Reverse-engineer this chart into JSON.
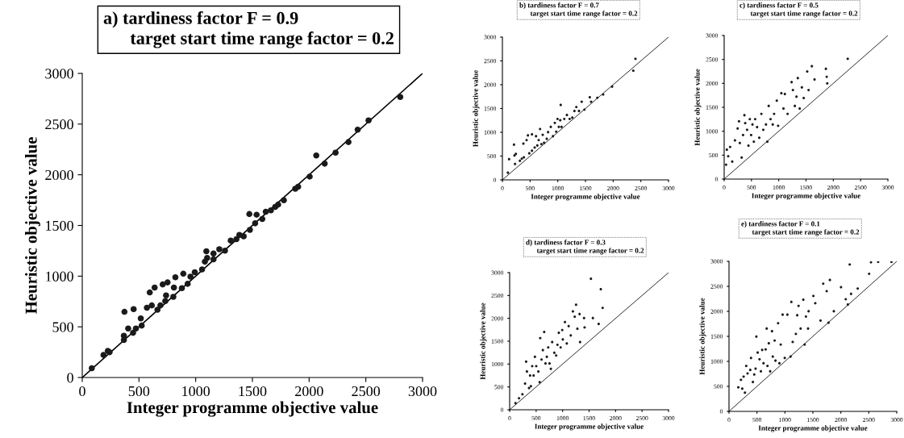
{
  "chart_data": [
    {
      "type": "scatter",
      "title": "a) tardiness factor F = 0.9",
      "subtitle": "target start time range factor = 0.2",
      "xlabel": "Integer programme objective value",
      "ylabel": "Heuristic objective value",
      "xlim": [
        0,
        3000
      ],
      "ylim": [
        0,
        3000
      ],
      "xticks": [
        0,
        500,
        1000,
        1500,
        2000,
        2500,
        3000
      ],
      "yticks": [
        0,
        500,
        1000,
        1500,
        2000,
        2500,
        3000
      ],
      "grid": false,
      "legend": false,
      "series": [
        {
          "marker": "circle",
          "color": "#1a1a1a",
          "x": [
            84,
            187,
            225,
            241,
            367,
            367,
            372,
            405,
            453,
            448,
            473,
            516,
            524,
            570,
            595,
            638,
            613,
            663,
            689,
            709,
            752,
            732,
            739,
            803,
            808,
            821,
            878,
            891,
            929,
            954,
            992,
            1056,
            1081,
            1094,
            1101,
            1157,
            1208,
            1157,
            1258,
            1309,
            1359,
            1385,
            1423,
            1478,
            1473,
            1537,
            1524,
            1587,
            1618,
            1663,
            1701,
            1727,
            1777,
            1878,
            1903,
            2005,
            2063,
            2137,
            2233,
            2347,
            2428,
            2524,
            2803
          ],
          "values": [
            91,
            222,
            262,
            250,
            370,
            412,
            648,
            483,
            674,
            441,
            483,
            583,
            512,
            688,
            839,
            887,
            711,
            668,
            711,
            918,
            938,
            754,
            810,
            796,
            887,
            989,
            881,
            1024,
            924,
            995,
            1038,
            1066,
            1143,
            1245,
            1180,
            1223,
            1265,
            1166,
            1251,
            1351,
            1365,
            1407,
            1393,
            1456,
            1612,
            1606,
            1521,
            1564,
            1635,
            1649,
            1683,
            1706,
            1749,
            1862,
            1882,
            1982,
            2190,
            2110,
            2218,
            2323,
            2445,
            2536,
            2767
          ]
        },
        {
          "type": "line",
          "marker": "none",
          "color": "#000000",
          "x": [
            0,
            3000
          ],
          "values": [
            0,
            3000
          ]
        }
      ]
    },
    {
      "type": "scatter",
      "title": "b) tardiness factor F = 0.7",
      "subtitle": "target start time range factor = 0.2",
      "xlabel": "Integer programme objective value",
      "ylabel": "Heuristic objective value",
      "xlim": [
        0,
        3000
      ],
      "ylim": [
        0,
        3000
      ],
      "xticks": [
        0,
        500,
        1000,
        1500,
        2000,
        2500,
        3000
      ],
      "yticks": [
        0,
        500,
        1000,
        1500,
        2000,
        2500,
        3000
      ],
      "grid": false,
      "legend": false,
      "series": [
        {
          "marker": "circle",
          "color": "#1a1a1a",
          "x": [
            100,
            121,
            209,
            218,
            243,
            228,
            316,
            350,
            388,
            379,
            437,
            461,
            485,
            534,
            534,
            583,
            607,
            631,
            655,
            680,
            704,
            728,
            752,
            801,
            825,
            874,
            913,
            947,
            971,
            995,
            1019,
            1044,
            1053,
            1068,
            1117,
            1165,
            1214,
            1262,
            1301,
            1335,
            1383,
            1432,
            1481,
            1578,
            1602,
            1714,
            1820,
            1981,
            2364,
            2403
          ],
          "values": [
            150,
            434,
            740,
            512,
            545,
            334,
            401,
            445,
            473,
            762,
            835,
            935,
            557,
            612,
            957,
            679,
            918,
            723,
            835,
            1068,
            751,
            946,
            779,
            862,
            1002,
            1113,
            918,
            1196,
            1013,
            1280,
            1113,
            1252,
            1574,
            1113,
            1280,
            1363,
            1280,
            1308,
            1447,
            1530,
            1447,
            1641,
            1475,
            1736,
            1641,
            1725,
            1792,
            1959,
            2293,
            2543
          ]
        },
        {
          "type": "line",
          "marker": "none",
          "color": "#000000",
          "x": [
            0,
            3000
          ],
          "values": [
            0,
            3000
          ]
        }
      ]
    },
    {
      "type": "scatter",
      "title": "c) tardiness factor F = 0.5",
      "subtitle": "target start time range factor = 0.2",
      "xlabel": "Integer programme objective value",
      "ylabel": "Heuristic objective value",
      "xlim": [
        0,
        3000
      ],
      "ylim": [
        0,
        3000
      ],
      "xticks": [
        0,
        500,
        1000,
        1500,
        2000,
        2500,
        3000
      ],
      "yticks": [
        0,
        500,
        1000,
        1500,
        2000,
        2500,
        3000
      ],
      "grid": false,
      "legend": false,
      "series": [
        {
          "marker": "circle",
          "color": "#1a1a1a",
          "x": [
            35,
            49,
            74,
            109,
            148,
            198,
            272,
            247,
            287,
            321,
            346,
            371,
            420,
            386,
            445,
            470,
            494,
            519,
            544,
            568,
            603,
            643,
            682,
            717,
            766,
            791,
            816,
            850,
            890,
            915,
            964,
            989,
            1048,
            1087,
            1112,
            1162,
            1236,
            1260,
            1295,
            1325,
            1350,
            1384,
            1424,
            1458,
            1522,
            1547,
            1607,
            1656,
            1864,
            1879,
            1889,
            2264
          ],
          "values": [
            299,
            614,
            476,
            670,
            365,
            808,
            1206,
            1057,
            753,
            448,
            919,
            1334,
            1029,
            1168,
            697,
            1251,
            919,
            1140,
            780,
            1251,
            1085,
            863,
            1361,
            1029,
            1140,
            780,
            1527,
            1251,
            1140,
            1361,
            1638,
            1112,
            1793,
            1472,
            1776,
            1361,
            2025,
            1859,
            1527,
            1721,
            2108,
            1472,
            1915,
            1693,
            2247,
            1859,
            2357,
            2081,
            2302,
            2136,
            1998,
            2512
          ]
        },
        {
          "type": "line",
          "marker": "none",
          "color": "#000000",
          "x": [
            0,
            3000
          ],
          "values": [
            0,
            3000
          ]
        }
      ]
    },
    {
      "type": "scatter",
      "title": "d) tardiness factor F = 0.3",
      "subtitle": "target start time range factor = 0.2",
      "xlabel": "Integer programme objective value",
      "ylabel": "Heuristic objective value",
      "xlim": [
        0,
        3000
      ],
      "ylim": [
        0,
        3000
      ],
      "xticks": [
        0,
        500,
        1000,
        1500,
        2000,
        2500,
        3000
      ],
      "yticks": [
        0,
        500,
        1000,
        1500,
        2000,
        2500,
        3000
      ],
      "grid": false,
      "legend": false,
      "series": [
        {
          "marker": "circle",
          "color": "#1a1a1a",
          "x": [
            110,
            176,
            241,
            291,
            311,
            326,
            366,
            386,
            401,
            426,
            452,
            477,
            502,
            542,
            567,
            577,
            602,
            627,
            652,
            677,
            702,
            728,
            753,
            778,
            803,
            843,
            878,
            903,
            928,
            963,
            993,
            1004,
            1044,
            1079,
            1114,
            1154,
            1194,
            1229,
            1254,
            1279,
            1320,
            1330,
            1405,
            1415,
            1535,
            1571,
            1681,
            1721,
            1756
          ],
          "values": [
            146,
            251,
            339,
            573,
            1053,
            836,
            474,
            749,
            515,
            953,
            749,
            1158,
            953,
            836,
            602,
            1567,
            1099,
            1304,
            1702,
            1012,
            1158,
            1363,
            1012,
            895,
            1480,
            1246,
            1187,
            1421,
            1684,
            1363,
            1743,
            1538,
            1918,
            1450,
            1830,
            1626,
            2152,
            2035,
            2298,
            1772,
            2094,
            1480,
            2006,
            1801,
            2865,
            2006,
            1877,
            2637,
            2228
          ]
        },
        {
          "type": "line",
          "marker": "none",
          "color": "#000000",
          "x": [
            0,
            3000
          ],
          "values": [
            0,
            3000
          ]
        }
      ]
    },
    {
      "type": "scatter",
      "title": "e) tardiness factor F = 0.1",
      "subtitle": "target start time range factor = 0.2",
      "xlabel": "Integer programme objective value",
      "ylabel": "Heuristic objective value",
      "xlim": [
        0,
        3000
      ],
      "ylim": [
        0,
        3000
      ],
      "xticks": [
        0,
        500,
        1000,
        1500,
        2000,
        2500,
        3000
      ],
      "yticks": [
        0,
        500,
        1000,
        1500,
        2000,
        2500,
        3000
      ],
      "grid": false,
      "legend": false,
      "series": [
        {
          "marker": "circle",
          "color": "#1a1a1a",
          "x": [
            166,
            237,
            285,
            214,
            261,
            308,
            332,
            380,
            394,
            427,
            451,
            475,
            489,
            513,
            546,
            570,
            593,
            617,
            655,
            674,
            688,
            712,
            736,
            769,
            783,
            816,
            831,
            878,
            902,
            925,
            959,
            997,
            1044,
            1101,
            1115,
            1139,
            1196,
            1220,
            1244,
            1281,
            1329,
            1353,
            1376,
            1414,
            1424,
            1509,
            1543,
            1637,
            1685,
            1747,
            1804,
            1780,
            1875,
            2003,
            2088,
            2126,
            2159,
            2183,
            2302,
            2506,
            2539,
            2667,
            2905
          ],
          "values": [
            481,
            454,
            374,
            630,
            694,
            908,
            758,
            828,
            1068,
            587,
            737,
            854,
            1495,
            1175,
            1041,
            801,
            1228,
            961,
            1239,
            1655,
            908,
            1361,
            801,
            1602,
            1095,
            1415,
            1014,
            1762,
            961,
            1335,
            1933,
            1068,
            1933,
            1095,
            2189,
            1388,
            1548,
            1922,
            2109,
            1655,
            2232,
            1335,
            1895,
            1655,
            2002,
            2307,
            2162,
            1815,
            2552,
            2403,
            2627,
            1773,
            2002,
            2483,
            2242,
            2136,
            2936,
            2349,
            2456,
            2750,
            2980,
            2990,
            2990
          ]
        },
        {
          "type": "line",
          "marker": "none",
          "color": "#000000",
          "x": [
            0,
            3000
          ],
          "values": [
            0,
            3000
          ]
        }
      ]
    }
  ]
}
